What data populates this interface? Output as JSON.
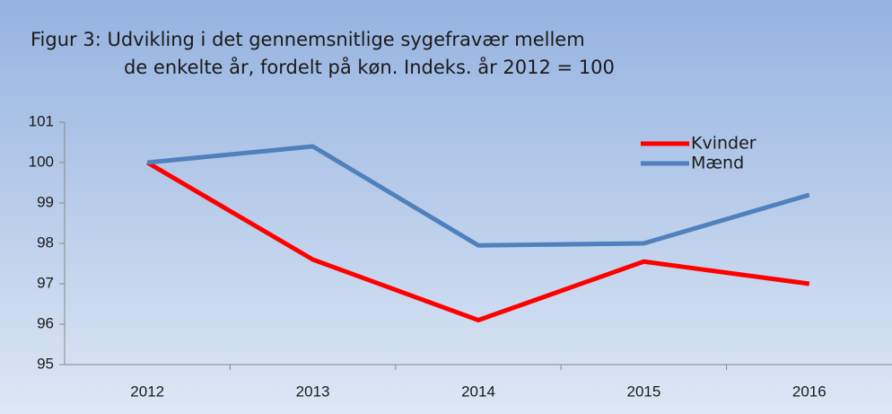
{
  "chart_data": {
    "type": "line",
    "title": [
      "Figur 3: Udvikling  i det gennemsnitlige sygefravær mellem",
      "de enkelte år, fordelt på køn. Indeks. år 2012 = 100"
    ],
    "categories": [
      "2012",
      "2013",
      "2014",
      "2015",
      "2016"
    ],
    "series": [
      {
        "name": "Kvinder",
        "color": "#ff0000",
        "values": [
          100,
          97.6,
          96.1,
          97.55,
          97.0
        ]
      },
      {
        "name": "Mænd",
        "color": "#4f81bd",
        "values": [
          100,
          100.4,
          97.95,
          98.0,
          99.2
        ]
      }
    ],
    "ylim": [
      95,
      101
    ],
    "yticks": [
      95,
      96,
      97,
      98,
      99,
      100,
      101
    ],
    "legend": "top-right",
    "grid": false
  }
}
